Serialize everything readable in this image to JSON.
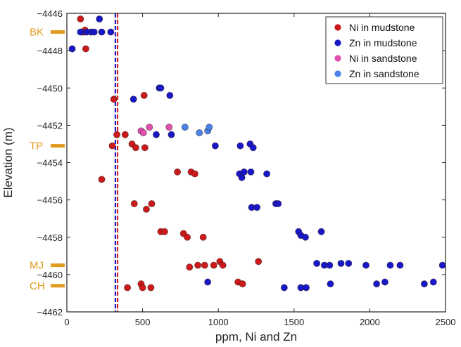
{
  "chart_data": {
    "type": "scatter",
    "xlabel": "ppm, Ni and Zn",
    "ylabel": "Elevation (m)",
    "xlim": [
      0,
      2500
    ],
    "ylim": [
      -4462,
      -4446
    ],
    "xticks": [
      0,
      500,
      1000,
      1500,
      2000,
      2500
    ],
    "yticks": [
      -4446,
      -4448,
      -4450,
      -4452,
      -4454,
      -4456,
      -4458,
      -4460,
      -4462
    ],
    "legend_position": "top-right",
    "vlines": [
      {
        "x": 330,
        "color": "#d42020",
        "style": "dashed"
      },
      {
        "x": 325,
        "color": "#1f1fd0",
        "style": "dashed"
      }
    ],
    "markers": [
      {
        "label": "BK",
        "y": -4447.0,
        "color": "#e09a1f"
      },
      {
        "label": "TP",
        "y": -4453.1,
        "color": "#e09a1f"
      },
      {
        "label": "MJ",
        "y": -4459.5,
        "color": "#e09a1f"
      },
      {
        "label": "CH",
        "y": -4460.6,
        "color": "#e09a1f"
      }
    ],
    "series": [
      {
        "name": "Ni in mudstone",
        "color": "#cc1a1a",
        "points": [
          [
            90,
            -4446.3
          ],
          [
            100,
            -4447.0
          ],
          [
            115,
            -4447.0
          ],
          [
            120,
            -4446.9
          ],
          [
            125,
            -4447.9
          ],
          [
            310,
            -4450.6
          ],
          [
            510,
            -4450.4
          ],
          [
            330,
            -4452.5
          ],
          [
            385,
            -4452.5
          ],
          [
            300,
            -4453.1
          ],
          [
            430,
            -4453.0
          ],
          [
            455,
            -4453.2
          ],
          [
            515,
            -4453.2
          ],
          [
            230,
            -4454.9
          ],
          [
            730,
            -4454.5
          ],
          [
            820,
            -4454.5
          ],
          [
            845,
            -4454.6
          ],
          [
            445,
            -4456.2
          ],
          [
            525,
            -4456.5
          ],
          [
            560,
            -4456.2
          ],
          [
            620,
            -4457.7
          ],
          [
            645,
            -4457.7
          ],
          [
            770,
            -4457.8
          ],
          [
            795,
            -4458.0
          ],
          [
            900,
            -4458.0
          ],
          [
            810,
            -4459.6
          ],
          [
            865,
            -4459.5
          ],
          [
            910,
            -4459.5
          ],
          [
            970,
            -4459.5
          ],
          [
            1010,
            -4459.3
          ],
          [
            1030,
            -4459.5
          ],
          [
            1265,
            -4459.3
          ],
          [
            400,
            -4460.7
          ],
          [
            490,
            -4460.5
          ],
          [
            500,
            -4460.7
          ],
          [
            555,
            -4460.7
          ],
          [
            1130,
            -4460.4
          ],
          [
            1160,
            -4460.5
          ]
        ]
      },
      {
        "name": "Zn in mudstone",
        "color": "#1818c8",
        "points": [
          [
            35,
            -4447.9
          ],
          [
            90,
            -4447.0
          ],
          [
            130,
            -4447.0
          ],
          [
            160,
            -4447.0
          ],
          [
            180,
            -4447.0
          ],
          [
            215,
            -4446.3
          ],
          [
            230,
            -4447.0
          ],
          [
            290,
            -4447.0
          ],
          [
            610,
            -4450.0
          ],
          [
            620,
            -4450.0
          ],
          [
            680,
            -4450.4
          ],
          [
            440,
            -4450.6
          ],
          [
            590,
            -4452.5
          ],
          [
            690,
            -4452.5
          ],
          [
            980,
            -4453.1
          ],
          [
            1145,
            -4453.1
          ],
          [
            1210,
            -4453.0
          ],
          [
            1230,
            -4453.2
          ],
          [
            1140,
            -4454.6
          ],
          [
            1155,
            -4454.8
          ],
          [
            1170,
            -4454.5
          ],
          [
            1215,
            -4454.5
          ],
          [
            1320,
            -4454.6
          ],
          [
            1220,
            -4456.4
          ],
          [
            1255,
            -4456.4
          ],
          [
            1380,
            -4456.2
          ],
          [
            1395,
            -4456.2
          ],
          [
            1530,
            -4457.7
          ],
          [
            1545,
            -4457.9
          ],
          [
            1575,
            -4458.0
          ],
          [
            1680,
            -4457.7
          ],
          [
            1650,
            -4459.4
          ],
          [
            1700,
            -4459.5
          ],
          [
            1735,
            -4459.5
          ],
          [
            1810,
            -4459.4
          ],
          [
            1860,
            -4459.4
          ],
          [
            1975,
            -4459.5
          ],
          [
            2135,
            -4459.5
          ],
          [
            2200,
            -4459.5
          ],
          [
            2480,
            -4459.5
          ],
          [
            1435,
            -4460.7
          ],
          [
            1545,
            -4460.7
          ],
          [
            1580,
            -4460.7
          ],
          [
            1740,
            -4460.5
          ],
          [
            2045,
            -4460.5
          ],
          [
            2100,
            -4460.4
          ],
          [
            2360,
            -4460.5
          ],
          [
            2420,
            -4460.4
          ],
          [
            930,
            -4460.4
          ]
        ]
      },
      {
        "name": "Ni in sandstone",
        "color": "#e050b0",
        "points": [
          [
            490,
            -4452.3
          ],
          [
            505,
            -4452.4
          ],
          [
            545,
            -4452.1
          ],
          [
            675,
            -4452.1
          ]
        ]
      },
      {
        "name": "Zn in sandstone",
        "color": "#4a82e8",
        "points": [
          [
            780,
            -4452.1
          ],
          [
            875,
            -4452.4
          ],
          [
            930,
            -4452.3
          ],
          [
            940,
            -4452.1
          ]
        ]
      }
    ]
  }
}
